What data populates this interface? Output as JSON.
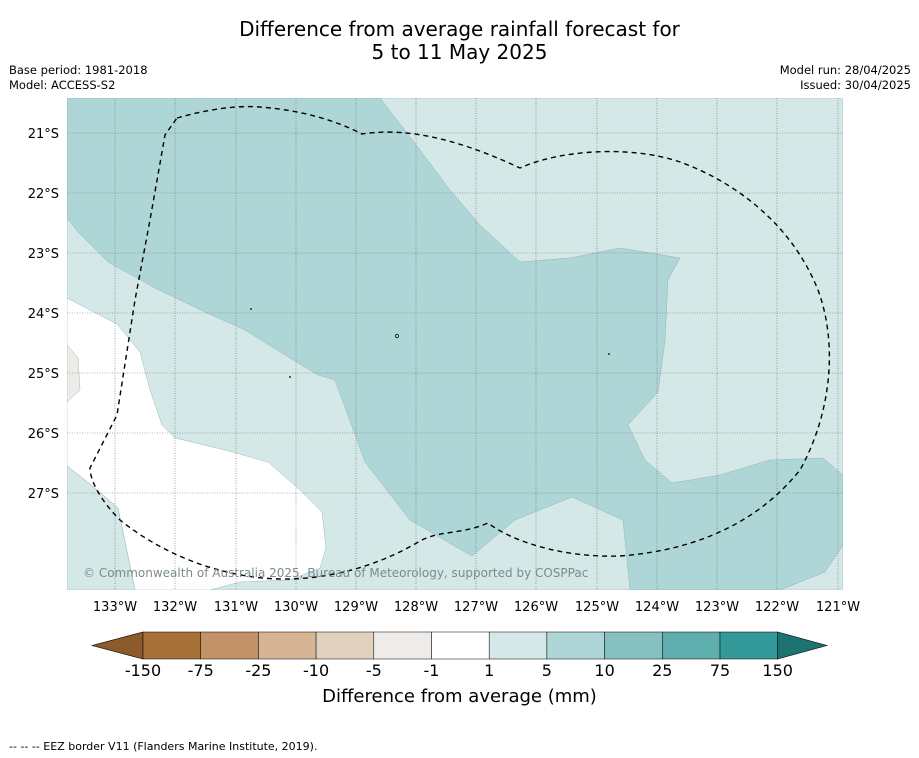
{
  "title": {
    "line1": "Difference from average rainfall forecast for",
    "line2": "5 to 11 May 2025"
  },
  "info_left": {
    "base_period": "Base period: 1981-2018",
    "model": "Model: ACCESS-S2"
  },
  "info_right": {
    "model_run": "Model run: 28/04/2025",
    "issued": "Issued: 30/04/2025"
  },
  "map": {
    "lat_labels": [
      "21°S",
      "22°S",
      "23°S",
      "24°S",
      "25°S",
      "26°S",
      "27°S"
    ],
    "lon_labels": [
      "133°W",
      "132°W",
      "131°W",
      "130°W",
      "129°W",
      "128°W",
      "127°W",
      "126°W",
      "125°W",
      "124°W",
      "123°W",
      "122°W",
      "121°W"
    ],
    "copyright": "© Commonwealth of Australia 2025, Bureau of Meteorology, supported by COSPPac",
    "colors": {
      "m150": "#a87138",
      "m75": "#c19367",
      "m25": "#d6b594",
      "m10": "#e3d1bf",
      "m5": "#efebe8",
      "zero": "#ffffff",
      "p1": "#d5e8e8",
      "p5": "#aed6d6",
      "p10": "#86c1c1",
      "p25": "#5faeae",
      "p75": "#339999",
      "p150": "#1d7272",
      "low_end": "#8c5a2b"
    }
  },
  "colorbar": {
    "ticks": [
      "-150",
      "-75",
      "-25",
      "-10",
      "-5",
      "-1",
      "1",
      "5",
      "10",
      "25",
      "75",
      "150"
    ],
    "label": "Difference from average (mm)"
  },
  "footnote": "--  --  -- EEZ border V11 (Flanders Marine Institute, 2019)."
}
